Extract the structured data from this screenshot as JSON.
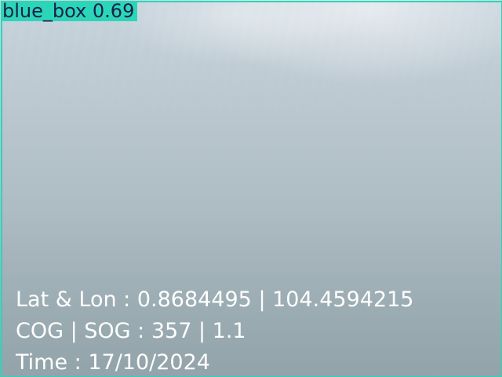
{
  "detection": {
    "class_label": "blue_box",
    "confidence": "0.69",
    "box_color": "#2bd6b8"
  },
  "overlay": {
    "latlon": "Lat & Lon : 0.8684495 | 104.4594215",
    "cog_sog": "COG | SOG : 357 | 1.1",
    "time": "Time : 17/10/2024"
  }
}
